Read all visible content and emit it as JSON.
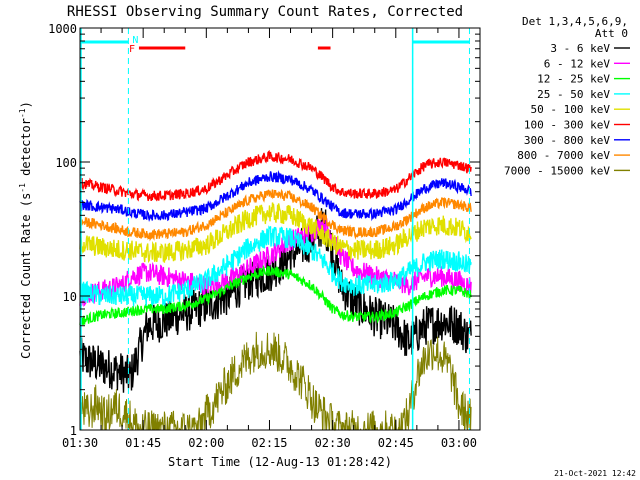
{
  "chart_data": {
    "type": "line",
    "title": "RHESSI Observing Summary Count Rates, Corrected",
    "xlabel": "Start Time (12-Aug-13 01:28:42)",
    "ylabel_main": "Corrected Count Rate (s",
    "ylabel_sup1": "-1",
    "ylabel_mid": " detector",
    "ylabel_sup2": "-1",
    "ylabel_end": ")",
    "yscale": "log",
    "ylim": [
      1,
      1000
    ],
    "y_ticks": [
      {
        "value": 1,
        "label": "1"
      },
      {
        "value": 10,
        "label": "10"
      },
      {
        "value": 100,
        "label": "100"
      },
      {
        "value": 1000,
        "label": "1000"
      }
    ],
    "xlim_minutes": [
      90,
      185
    ],
    "x_ticks": [
      {
        "minute": 90,
        "label": "01:30"
      },
      {
        "minute": 105,
        "label": "01:45"
      },
      {
        "minute": 120,
        "label": "02:00"
      },
      {
        "minute": 135,
        "label": "02:15"
      },
      {
        "minute": 150,
        "label": "02:30"
      },
      {
        "minute": 165,
        "label": "02:45"
      },
      {
        "minute": 180,
        "label": "03:00"
      }
    ],
    "legend": {
      "placement": "right",
      "header1": "Det 1,3,4,5,6,9,",
      "header2": "Att 0"
    },
    "series": [
      {
        "name": "3 - 6 keV",
        "color": "#000000",
        "x": [
          90,
          95,
          100,
          102,
          106,
          110,
          115,
          120,
          125,
          130,
          135,
          140,
          145,
          148,
          150,
          152,
          155,
          160,
          165,
          168,
          172,
          176,
          180,
          182,
          183
        ],
        "y": [
          3.5,
          3.0,
          2.7,
          2.5,
          6,
          6.5,
          7.5,
          8.5,
          10,
          13,
          15,
          20,
          26,
          35,
          22,
          12,
          9,
          7,
          6,
          4.5,
          6,
          6.5,
          6,
          5,
          5
        ]
      },
      {
        "name": "6 - 12 keV",
        "color": "#ff00ff",
        "x": [
          90,
          95,
          100,
          102,
          106,
          110,
          115,
          120,
          125,
          130,
          135,
          140,
          145,
          148,
          150,
          152,
          155,
          160,
          165,
          168,
          172,
          176,
          180,
          182,
          183
        ],
        "y": [
          10,
          11,
          12,
          14,
          15,
          14,
          13,
          12,
          13,
          16,
          20,
          26,
          30,
          35,
          28,
          20,
          16,
          14,
          13,
          12,
          14,
          14,
          13,
          12,
          12
        ]
      },
      {
        "name": "12 - 25 keV",
        "color": "#00ff00",
        "x": [
          90,
          95,
          100,
          102,
          106,
          110,
          115,
          120,
          125,
          130,
          135,
          140,
          145,
          148,
          150,
          152,
          155,
          160,
          165,
          168,
          172,
          176,
          180,
          182,
          183
        ],
        "y": [
          6.5,
          7.2,
          7.5,
          7.7,
          8,
          8,
          8.5,
          9.5,
          11.5,
          14,
          15.5,
          14.5,
          12,
          9.5,
          8,
          7.3,
          7,
          7,
          7.5,
          8.5,
          10,
          11,
          11,
          10.5,
          10
        ]
      },
      {
        "name": "25 - 50 keV",
        "color": "#00ffff",
        "x": [
          90,
          95,
          100,
          102,
          106,
          110,
          115,
          120,
          125,
          130,
          135,
          140,
          145,
          148,
          150,
          152,
          155,
          160,
          165,
          168,
          172,
          176,
          180,
          182,
          183
        ],
        "y": [
          11,
          10,
          10,
          10,
          10,
          10,
          11,
          13,
          17,
          23,
          28,
          27,
          22,
          18,
          15,
          13,
          12,
          12,
          13,
          15,
          18,
          19,
          18,
          17,
          16
        ]
      },
      {
        "name": "50 - 100 keV",
        "color": "#e0e000",
        "x": [
          90,
          95,
          100,
          102,
          106,
          110,
          115,
          120,
          125,
          130,
          135,
          140,
          145,
          148,
          150,
          152,
          155,
          160,
          165,
          168,
          172,
          176,
          180,
          182,
          183
        ],
        "y": [
          25,
          23,
          22,
          22,
          21,
          21,
          22,
          24,
          30,
          38,
          42,
          40,
          33,
          28,
          25,
          23,
          22,
          22,
          24,
          28,
          33,
          34,
          32,
          30,
          30
        ]
      },
      {
        "name": "100 - 300 keV",
        "color": "#ff0000",
        "x": [
          90,
          95,
          100,
          102,
          106,
          110,
          115,
          120,
          125,
          130,
          135,
          140,
          145,
          148,
          150,
          152,
          155,
          160,
          165,
          168,
          172,
          176,
          180,
          182,
          183
        ],
        "y": [
          70,
          65,
          60,
          58,
          56,
          56,
          58,
          63,
          80,
          100,
          110,
          105,
          90,
          75,
          65,
          60,
          58,
          58,
          62,
          75,
          95,
          100,
          95,
          90,
          88
        ]
      },
      {
        "name": "300 - 800 keV",
        "color": "#0000ff",
        "x": [
          90,
          95,
          100,
          102,
          106,
          110,
          115,
          120,
          125,
          130,
          135,
          140,
          145,
          148,
          150,
          152,
          155,
          160,
          165,
          168,
          172,
          176,
          180,
          182,
          183
        ],
        "y": [
          48,
          46,
          44,
          42,
          40,
          40,
          42,
          45,
          56,
          70,
          78,
          74,
          62,
          52,
          46,
          42,
          41,
          41,
          44,
          52,
          64,
          70,
          65,
          62,
          60
        ]
      },
      {
        "name": "800 - 7000 keV",
        "color": "#ff8800",
        "x": [
          90,
          95,
          100,
          102,
          106,
          110,
          115,
          120,
          125,
          130,
          135,
          140,
          145,
          148,
          150,
          152,
          155,
          160,
          165,
          168,
          172,
          176,
          180,
          182,
          183
        ],
        "y": [
          36,
          34,
          31,
          30,
          29,
          29,
          30,
          34,
          42,
          52,
          58,
          55,
          46,
          38,
          34,
          31,
          30,
          30,
          33,
          38,
          46,
          50,
          48,
          46,
          45
        ]
      },
      {
        "name": "7000 - 15000 keV",
        "color": "#808000",
        "x": [
          90,
          92,
          94,
          96,
          98,
          100,
          102,
          104,
          106,
          108,
          110,
          112,
          114,
          116,
          118,
          120,
          122,
          124,
          126,
          128,
          130,
          132,
          134,
          136,
          138,
          140,
          142,
          144,
          146,
          148,
          150,
          152,
          154,
          156,
          158,
          160,
          162,
          164,
          166,
          168,
          170,
          172,
          174,
          176,
          178,
          180,
          182,
          183
        ],
        "y": [
          1.5,
          1.3,
          1.6,
          1.2,
          1.5,
          1.4,
          1.2,
          1.0,
          1.0,
          1.0,
          1.0,
          1.0,
          1.0,
          1.0,
          1.0,
          1.3,
          1.6,
          2.0,
          2.5,
          3.0,
          3.5,
          4.0,
          4.0,
          4.0,
          3.5,
          3.0,
          2.5,
          2.0,
          1.5,
          1.3,
          1.1,
          1.0,
          1.0,
          1.0,
          1.0,
          1.0,
          1.0,
          1.0,
          1.0,
          1.3,
          2.5,
          3.5,
          4.0,
          3.5,
          2.8,
          1.5,
          1.3,
          1.2
        ]
      }
    ],
    "annotations": {
      "saa_bars": [
        [
          90,
          101.5
        ],
        [
          169,
          182.5
        ]
      ],
      "saa_color": "#00ffff",
      "night_lines": [
        101.5,
        169,
        182.5
      ],
      "night_label": "N",
      "flare_label": "F",
      "flare_bars": [
        [
          104,
          115
        ],
        [
          146.5,
          149.5
        ]
      ],
      "flare_color": "#ff0000"
    },
    "footer_date": "21-Oct-2021 12:42"
  }
}
